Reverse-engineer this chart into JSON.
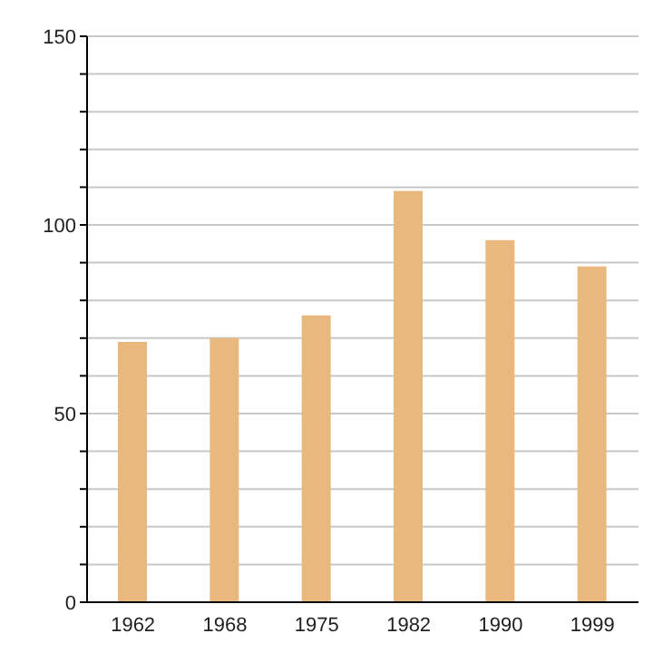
{
  "chart_data": {
    "type": "bar",
    "categories": [
      "1962",
      "1968",
      "1975",
      "1982",
      "1990",
      "1999"
    ],
    "values": [
      69,
      70,
      76,
      109,
      96,
      89
    ],
    "color": "#e8b87e",
    "ylim": [
      0,
      150
    ],
    "yticks": [
      0,
      {
        "value": 10,
        "label": null
      },
      {
        "value": 20,
        "label": null
      },
      {
        "value": 30,
        "label": null
      },
      {
        "value": 40,
        "label": null
      },
      50,
      {
        "value": 60,
        "label": null
      },
      {
        "value": 70,
        "label": null
      },
      {
        "value": 80,
        "label": null
      },
      {
        "value": 90,
        "label": null
      },
      100,
      {
        "value": 110,
        "label": null
      },
      {
        "value": 120,
        "label": null
      },
      {
        "value": 130,
        "label": null
      },
      {
        "value": 140,
        "label": null
      },
      150
    ],
    "grid": "y"
  }
}
